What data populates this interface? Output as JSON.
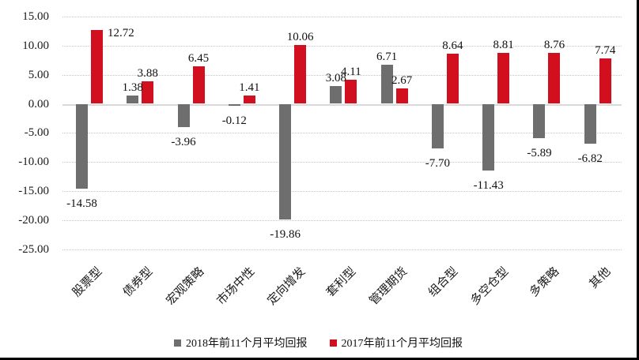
{
  "chart_data": {
    "type": "bar",
    "title": "",
    "categories": [
      "股票型",
      "债券型",
      "宏观策略",
      "市场中性",
      "定向增发",
      "套利型",
      "管理期货",
      "组合型",
      "多空仓型",
      "多策略",
      "其他"
    ],
    "series": [
      {
        "name": "2018年前11个月平均回报",
        "color": "#6E6E6E",
        "values": [
          -14.58,
          1.38,
          -3.96,
          -0.12,
          -19.86,
          3.08,
          6.71,
          -7.7,
          -11.43,
          -5.89,
          -6.82
        ]
      },
      {
        "name": "2017年前11个月平均回报",
        "color": "#D20F1F",
        "values": [
          12.72,
          3.88,
          6.45,
          1.41,
          10.06,
          4.11,
          2.67,
          8.64,
          8.81,
          8.76,
          7.74
        ]
      }
    ],
    "y_axis": {
      "min": -25,
      "max": 15,
      "step": 5,
      "ticks": [
        "15.00",
        "10.00",
        "5.00",
        "0.00",
        "-5.00",
        "-10.00",
        "-15.00",
        "-20.00",
        "-25.00"
      ]
    },
    "value_labels_decimals": 2,
    "grid": "horizontal-dotted",
    "legend_position": "bottom"
  },
  "colors": {
    "background": "#FFFFFF",
    "gridline": "#C6C6C6",
    "zero_line": "#D9D9D9",
    "text": "#1A1A1A",
    "frame_border": "#000000",
    "series_2018": "#6E6E6E",
    "series_2017": "#D20F1F"
  }
}
